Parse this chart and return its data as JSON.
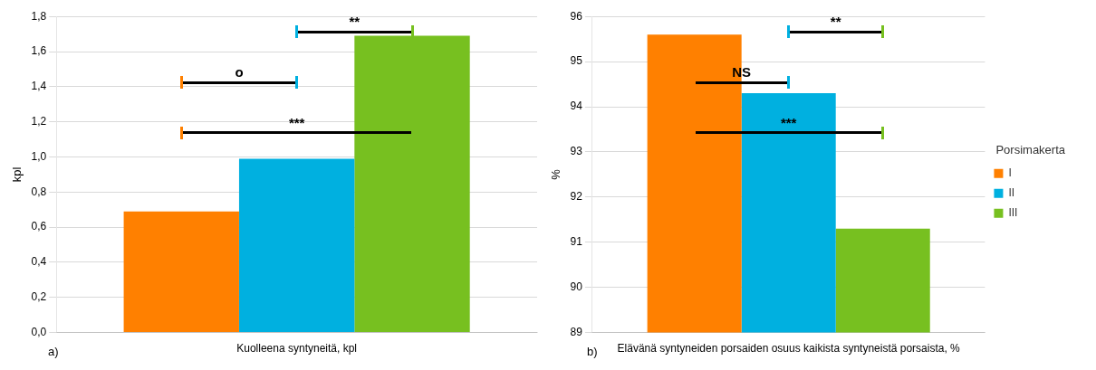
{
  "chart_data": [
    {
      "type": "bar",
      "categories": [
        "Kuolleena syntyneitä, kpl"
      ],
      "ylabel": "kpl",
      "ylim": [
        0,
        1.8
      ],
      "yticks": [
        {
          "value": 0,
          "label": "0,0"
        },
        {
          "value": 0.2,
          "label": "0,2"
        },
        {
          "value": 0.4,
          "label": "0,4"
        },
        {
          "value": 0.6,
          "label": "0,6"
        },
        {
          "value": 0.8,
          "label": "0,8"
        },
        {
          "value": 1,
          "label": "1,0"
        },
        {
          "value": 1.2,
          "label": "1,2"
        },
        {
          "value": 1.4,
          "label": "1,4"
        },
        {
          "value": 1.6,
          "label": "1,6"
        },
        {
          "value": 1.8,
          "label": "1,8"
        }
      ],
      "grid": "y",
      "legend": false,
      "series": [
        {
          "color": "#ff8000",
          "values": [
            0.69
          ]
        },
        {
          "color": "#00b0e0",
          "values": [
            0.99
          ]
        },
        {
          "color": "#77c020",
          "values": [
            1.69
          ]
        }
      ],
      "annotations": [
        "a)",
        "**",
        "o",
        "***"
      ]
    },
    {
      "type": "bar",
      "categories": [
        "Elävänä syntyneiden porsaiden osuus kaikista syntyneistä porsaista, %"
      ],
      "ylabel": "%",
      "ylim": [
        89,
        96
      ],
      "yticks": [
        89,
        90,
        91,
        92,
        93,
        94,
        95,
        96
      ],
      "grid": "y",
      "legend": "right",
      "legend_title": "Porsimakerta",
      "series": [
        {
          "name": "I",
          "color": "#ff8000",
          "values": [
            95.6
          ]
        },
        {
          "name": "II",
          "color": "#00b0e0",
          "values": [
            94.3
          ]
        },
        {
          "name": "III",
          "color": "#77c020",
          "values": [
            91.3
          ]
        }
      ],
      "annotations": [
        "b)",
        "**",
        "NS",
        "***"
      ]
    }
  ]
}
